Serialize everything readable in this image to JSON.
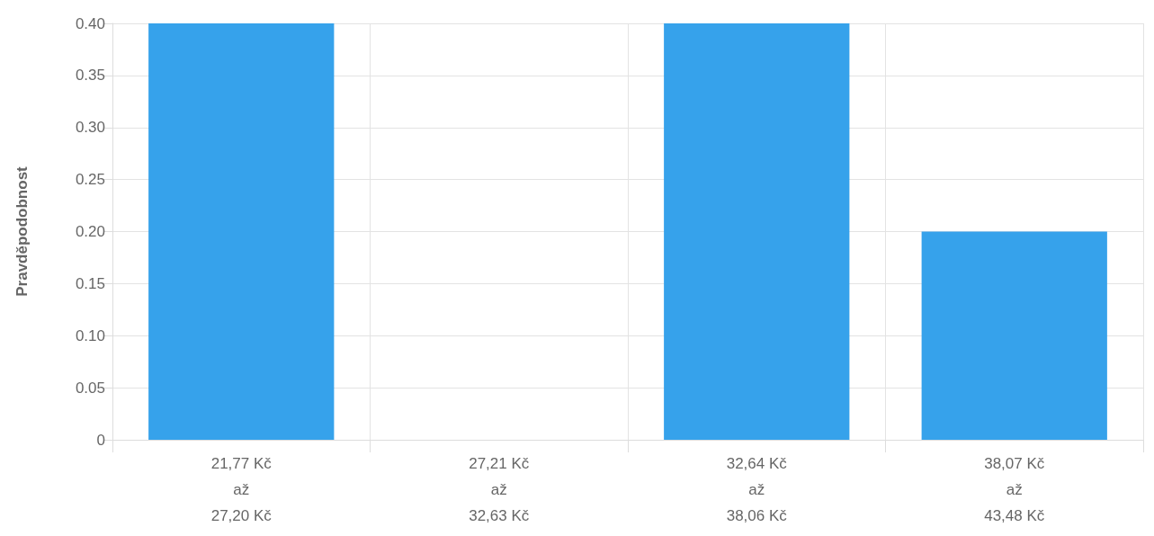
{
  "chart_data": {
    "type": "bar",
    "ylabel": "Pravděpodobnost",
    "categories": [
      "21,77 Kč\naž\n27,20 Kč",
      "27,21 Kč\naž\n32,63 Kč",
      "32,64 Kč\naž\n38,06 Kč",
      "38,07 Kč\naž\n43,48 Kč"
    ],
    "values": [
      0.4,
      0,
      0.4,
      0.2
    ],
    "color": "#36a2eb",
    "ylim": [
      0,
      0.4
    ],
    "yticks": [
      0,
      {
        "value": 0.05,
        "label": "0.05"
      },
      {
        "value": 0.1,
        "label": "0.10"
      },
      {
        "value": 0.15,
        "label": "0.15"
      },
      {
        "value": 0.2,
        "label": "0.20"
      },
      {
        "value": 0.25,
        "label": "0.25"
      },
      {
        "value": 0.3,
        "label": "0.30"
      },
      {
        "value": 0.35,
        "label": "0.35"
      },
      {
        "value": 0.4,
        "label": "0.40"
      }
    ],
    "grid": true
  }
}
